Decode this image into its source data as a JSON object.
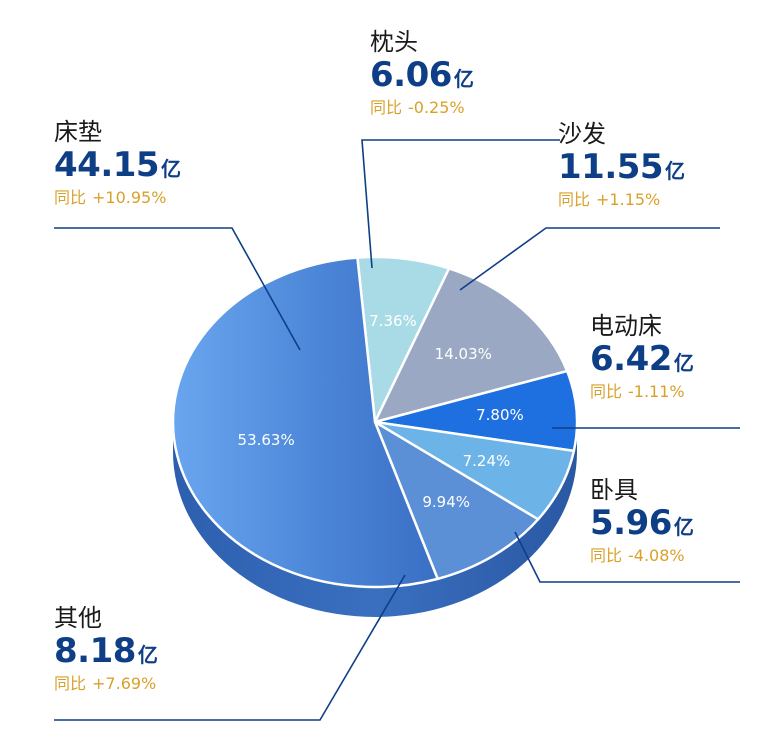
{
  "chart_data": {
    "type": "pie",
    "unit": "亿",
    "yoy_prefix": "同比",
    "slices": [
      {
        "name": "枕头",
        "value": 6.06,
        "percent_label": "7.36%",
        "yoy": "-0.25%",
        "color": "#a9dbe7"
      },
      {
        "name": "沙发",
        "value": 11.55,
        "percent_label": "14.03%",
        "yoy": "+1.15%",
        "color": "#9aa8c4"
      },
      {
        "name": "电动床",
        "value": 6.42,
        "percent_label": "7.80%",
        "yoy": "-1.11%",
        "color": "#1e6fe0"
      },
      {
        "name": "卧具",
        "value": 5.96,
        "percent_label": "7.24%",
        "yoy": "-4.08%",
        "color": "#6cb4e8"
      },
      {
        "name": "其他",
        "value": 8.18,
        "percent_label": "9.94%",
        "yoy": "+7.69%",
        "color": "#5b8fd6"
      },
      {
        "name": "床垫",
        "value": 44.15,
        "percent_label": "53.63%",
        "yoy": "+10.95%",
        "color": "#4b83d6"
      }
    ],
    "labels_display": [
      {
        "name": "枕头",
        "value": "6.06",
        "yoy": "-0.25%"
      },
      {
        "name": "沙发",
        "value": "11.55",
        "yoy": "+1.15%"
      },
      {
        "name": "电动床",
        "value": "6.42",
        "yoy": "-1.11%"
      },
      {
        "name": "卧具",
        "value": "5.96",
        "yoy": "-4.08%"
      },
      {
        "name": "其他",
        "value": "8.18",
        "yoy": "+7.69%"
      },
      {
        "name": "床垫",
        "value": "44.15",
        "yoy": "+10.95%"
      }
    ]
  }
}
